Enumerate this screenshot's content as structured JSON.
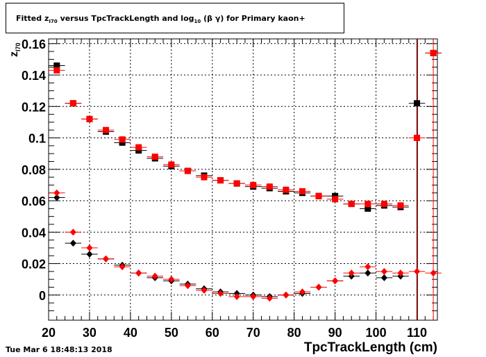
{
  "title": {
    "pre": "Fitted  z",
    "sub1": "I70",
    "mid": "  versus TpcTrackLength and log",
    "sub2": "10",
    "post": " (β γ) for Primary kaon+"
  },
  "timestamp": "Tue Mar  6 18:48:13 2018",
  "chart_data": {
    "type": "scatter",
    "xlabel": "TpcTrackLength (cm)",
    "ylabel_main": "z",
    "ylabel_sub": "I70",
    "xlim": [
      20,
      115
    ],
    "ylim": [
      -0.016,
      0.163
    ],
    "xticks": [
      20,
      30,
      40,
      50,
      60,
      70,
      80,
      90,
      100,
      110
    ],
    "yticks": [
      0,
      0.02,
      0.04,
      0.06,
      0.08,
      0.1,
      0.12,
      0.14,
      0.16
    ],
    "ytick_labels": [
      "0",
      "0.02",
      "0.04",
      "0.06",
      "0.08",
      "0.1",
      "0.12",
      "0.14",
      "0.16"
    ],
    "grid": true,
    "series": [
      {
        "marker": "square",
        "color": "#000000",
        "x": [
          22,
          26,
          30,
          34,
          38,
          42,
          46,
          50,
          54,
          58,
          62,
          66,
          70,
          74,
          78,
          82,
          86,
          90,
          94,
          98,
          102,
          106,
          110,
          114
        ],
        "y": [
          0.146,
          0.122,
          0.112,
          0.104,
          0.097,
          0.092,
          0.087,
          0.082,
          0.079,
          0.076,
          0.073,
          0.071,
          0.069,
          0.068,
          0.066,
          0.065,
          0.063,
          0.063,
          0.058,
          0.055,
          0.057,
          0.056,
          0.122,
          0.154
        ]
      },
      {
        "marker": "square",
        "color": "#ff0000",
        "x": [
          22,
          26,
          30,
          34,
          38,
          42,
          46,
          50,
          54,
          58,
          62,
          66,
          70,
          74,
          78,
          82,
          86,
          90,
          94,
          98,
          102,
          106,
          110,
          114
        ],
        "y": [
          0.143,
          0.122,
          0.112,
          0.105,
          0.099,
          0.094,
          0.088,
          0.083,
          0.079,
          0.075,
          0.073,
          0.071,
          0.07,
          0.069,
          0.067,
          0.066,
          0.063,
          0.061,
          0.058,
          0.058,
          0.058,
          0.057,
          0.1,
          0.154
        ]
      },
      {
        "marker": "diamond",
        "color": "#000000",
        "x": [
          22,
          26,
          30,
          34,
          38,
          42,
          46,
          50,
          54,
          58,
          62,
          66,
          70,
          74,
          78,
          82,
          86,
          90,
          94,
          98,
          102,
          106
        ],
        "y": [
          0.062,
          0.033,
          0.026,
          0.023,
          0.019,
          0.014,
          0.011,
          0.009,
          0.007,
          0.004,
          0.002,
          0.001,
          0.0,
          -0.001,
          0.0,
          0.001,
          0.005,
          0.009,
          0.012,
          0.014,
          0.011,
          0.012
        ]
      },
      {
        "marker": "diamond",
        "color": "#ff0000",
        "x": [
          22,
          26,
          30,
          34,
          38,
          42,
          46,
          50,
          54,
          58,
          62,
          66,
          70,
          74,
          78,
          82,
          86,
          90,
          94,
          98,
          102,
          106,
          110,
          114
        ],
        "y": [
          0.065,
          0.04,
          0.03,
          0.023,
          0.018,
          0.014,
          0.012,
          0.01,
          0.006,
          0.003,
          0.001,
          -0.001,
          -0.001,
          -0.002,
          0.0,
          0.002,
          0.005,
          0.009,
          0.014,
          0.018,
          0.015,
          0.014,
          0.015,
          0.014
        ]
      }
    ]
  }
}
